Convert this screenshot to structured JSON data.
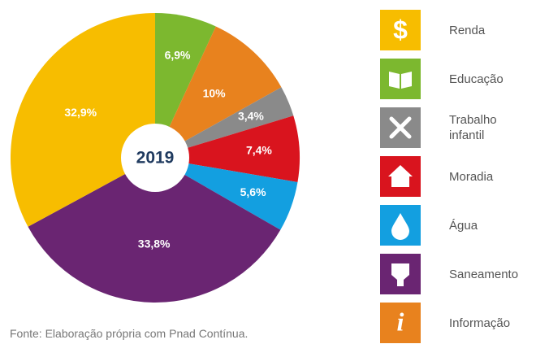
{
  "chart_data": {
    "type": "pie",
    "values": [
      6.9,
      10,
      3.4,
      7.4,
      5.6,
      33.8,
      32.9
    ],
    "value_labels": [
      "6,9%",
      "10%",
      "3,4%",
      "7,4%",
      "5,6%",
      "33,8%",
      "32,9%"
    ],
    "colors": [
      "#7cb82f",
      "#e8821e",
      "#8a8a8a",
      "#d9141e",
      "#139fe0",
      "#6a2572",
      "#f7bd00"
    ],
    "center_label": "2019",
    "source": "Fonte: Elaboração própria com Pnad Contínua."
  },
  "legend": [
    {
      "label": "Renda",
      "color": "#f7bd00"
    },
    {
      "label": "Educação",
      "color": "#7cb82f"
    },
    {
      "label": "Trabalho infantil",
      "color": "#8a8a8a"
    },
    {
      "label": "Moradia",
      "color": "#d9141e"
    },
    {
      "label": "Água",
      "color": "#139fe0"
    },
    {
      "label": "Saneamento",
      "color": "#6a2572"
    },
    {
      "label": "Informação",
      "color": "#e8821e"
    }
  ]
}
